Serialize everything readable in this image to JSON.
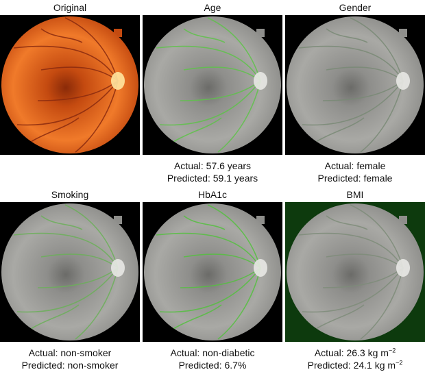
{
  "panels": [
    {
      "title": "Original"
    },
    {
      "title": "Age",
      "captions": [
        {
          "text": "Actual: 57.6 years"
        },
        {
          "text": "Predicted: 59.1 years"
        }
      ]
    },
    {
      "title": "Gender",
      "captions": [
        {
          "text": "Actual: female"
        },
        {
          "text": "Predicted: female"
        }
      ]
    },
    {
      "title": "Smoking",
      "captions": [
        {
          "text": "Actual: non-smoker"
        },
        {
          "text": "Predicted: non-smoker"
        }
      ]
    },
    {
      "title": "HbA1c",
      "captions": [
        {
          "text": "Actual: non-diabetic"
        },
        {
          "text": "Predicted: 6.7%"
        }
      ]
    },
    {
      "title": "BMI",
      "captions": [
        {
          "text": "Actual: 26.3 kg m",
          "sup": "−2"
        },
        {
          "text": "Predicted: 24.1 kg m",
          "sup": "−2"
        }
      ]
    }
  ]
}
